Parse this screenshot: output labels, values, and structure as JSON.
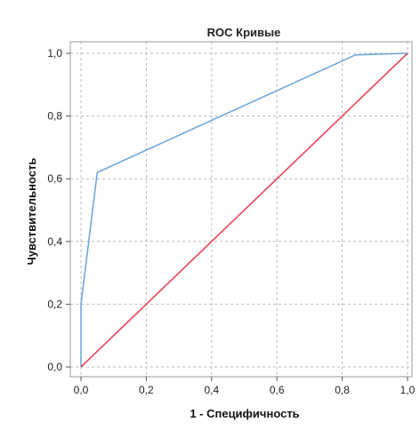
{
  "chart_data": {
    "type": "line",
    "title": "ROC Кривые",
    "xlabel": "1 - Специфичность",
    "ylabel": "Чувствительность",
    "xlim": [
      0,
      1
    ],
    "ylim": [
      0,
      1
    ],
    "x_ticks": [
      "0,0",
      "0,2",
      "0,4",
      "0,6",
      "0,8",
      "1,0"
    ],
    "y_ticks": [
      "0,0",
      "0,2",
      "0,4",
      "0,6",
      "0,8",
      "1,0"
    ],
    "grid": true,
    "series": [
      {
        "color": "#6fa8dc",
        "x": [
          0.0,
          0.0,
          0.05,
          0.84,
          1.0
        ],
        "y": [
          0.0,
          0.2,
          0.62,
          0.995,
          1.0
        ]
      },
      {
        "color": "#e8445e",
        "x": [
          0.0,
          1.0
        ],
        "y": [
          0.0,
          1.0
        ]
      }
    ]
  }
}
